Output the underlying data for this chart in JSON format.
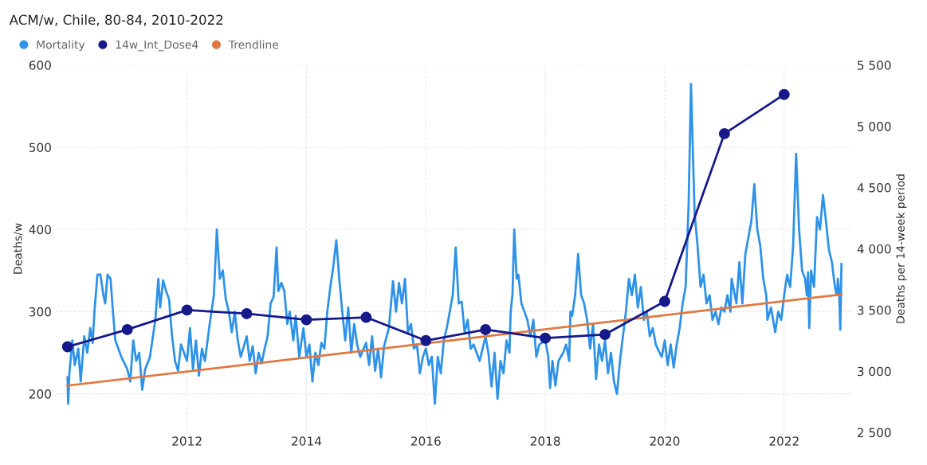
{
  "chart_data": {
    "type": "line",
    "title": "ACM/w, Chile, 80-84, 2010-2022",
    "ylabel": "Deaths/w",
    "y2label": "Deaths per 14-week period",
    "xlim": [
      2009.8,
      2023.15
    ],
    "xticks": [
      2012,
      2014,
      2016,
      2018,
      2020,
      2022
    ],
    "ylim": [
      153,
      600
    ],
    "yticks": [
      200,
      300,
      400,
      500,
      600
    ],
    "y2lim": [
      2500,
      5500
    ],
    "y2ticks": [
      {
        "value": 2500,
        "label": "2 500"
      },
      {
        "value": 3000,
        "label": "3 000"
      },
      {
        "value": 3500,
        "label": "3 500"
      },
      {
        "value": 4000,
        "label": "4 000"
      },
      {
        "value": 4500,
        "label": "4 500"
      },
      {
        "value": 5000,
        "label": "5 000"
      },
      {
        "value": 5500,
        "label": "5 500"
      }
    ],
    "grid": true,
    "legend": "top left",
    "series": [
      {
        "name": "Mortality",
        "color": "#2e93e8",
        "marker": "none",
        "x": [
          2010.0,
          2010.01,
          2010.03,
          2010.08,
          2010.12,
          2010.18,
          2010.22,
          2010.28,
          2010.33,
          2010.38,
          2010.42,
          2010.45,
          2010.5,
          2010.55,
          2010.6,
          2010.63,
          2010.67,
          2010.72,
          2010.76,
          2010.8,
          2010.85,
          2010.9,
          2011.0,
          2011.05,
          2011.1,
          2011.15,
          2011.2,
          2011.25,
          2011.3,
          2011.38,
          2011.42,
          2011.47,
          2011.52,
          2011.55,
          2011.6,
          2011.65,
          2011.7,
          2011.75,
          2011.8,
          2011.85,
          2011.9,
          2012.0,
          2012.05,
          2012.1,
          2012.15,
          2012.2,
          2012.25,
          2012.3,
          2012.38,
          2012.45,
          2012.5,
          2012.55,
          2012.6,
          2012.65,
          2012.7,
          2012.75,
          2012.8,
          2012.85,
          2012.9,
          2013.0,
          2013.05,
          2013.1,
          2013.15,
          2013.2,
          2013.25,
          2013.3,
          2013.35,
          2013.4,
          2013.45,
          2013.5,
          2013.53,
          2013.58,
          2013.63,
          2013.68,
          2013.72,
          2013.78,
          2013.82,
          2013.88,
          2013.95,
          2014.0,
          2014.05,
          2014.1,
          2014.15,
          2014.2,
          2014.25,
          2014.3,
          2014.35,
          2014.4,
          2014.45,
          2014.5,
          2014.55,
          2014.6,
          2014.65,
          2014.7,
          2014.75,
          2014.8,
          2014.85,
          2014.9,
          2015.0,
          2015.05,
          2015.1,
          2015.15,
          2015.2,
          2015.25,
          2015.3,
          2015.38,
          2015.45,
          2015.5,
          2015.55,
          2015.6,
          2015.65,
          2015.7,
          2015.75,
          2015.8,
          2015.85,
          2015.9,
          2015.95,
          2016.0,
          2016.05,
          2016.1,
          2016.15,
          2016.2,
          2016.25,
          2016.3,
          2016.35,
          2016.4,
          2016.45,
          2016.5,
          2016.55,
          2016.6,
          2016.65,
          2016.7,
          2016.75,
          2016.8,
          2016.9,
          2016.95,
          2017.0,
          2017.05,
          2017.1,
          2017.15,
          2017.2,
          2017.25,
          2017.3,
          2017.35,
          2017.4,
          2017.42,
          2017.45,
          2017.48,
          2017.52,
          2017.55,
          2017.6,
          2017.65,
          2017.7,
          2017.75,
          2017.8,
          2017.85,
          2017.9,
          2018.0,
          2018.05,
          2018.08,
          2018.12,
          2018.17,
          2018.22,
          2018.3,
          2018.35,
          2018.4,
          2018.42,
          2018.45,
          2018.5,
          2018.55,
          2018.6,
          2018.65,
          2018.7,
          2018.75,
          2018.8,
          2018.85,
          2018.9,
          2018.95,
          2019.0,
          2019.05,
          2019.1,
          2019.15,
          2019.2,
          2019.25,
          2019.3,
          2019.35,
          2019.4,
          2019.45,
          2019.5,
          2019.55,
          2019.6,
          2019.65,
          2019.7,
          2019.75,
          2019.8,
          2019.85,
          2019.9,
          2019.95,
          2020.0,
          2020.05,
          2020.1,
          2020.15,
          2020.2,
          2020.25,
          2020.3,
          2020.35,
          2020.4,
          2020.44,
          2020.5,
          2020.55,
          2020.6,
          2020.65,
          2020.7,
          2020.75,
          2020.8,
          2020.85,
          2020.9,
          2020.95,
          2021.0,
          2021.05,
          2021.1,
          2021.12,
          2021.2,
          2021.25,
          2021.3,
          2021.35,
          2021.4,
          2021.45,
          2021.5,
          2021.55,
          2021.6,
          2021.65,
          2021.7,
          2021.72,
          2021.78,
          2021.85,
          2021.9,
          2021.95,
          2022.0,
          2022.05,
          2022.1,
          2022.15,
          2022.2,
          2022.25,
          2022.3,
          2022.35,
          2022.38,
          2022.4,
          2022.42,
          2022.45,
          2022.5,
          2022.55,
          2022.6,
          2022.65,
          2022.7,
          2022.75,
          2022.8,
          2022.85,
          2022.88,
          2022.9,
          2022.92,
          2022.94,
          2022.96
        ],
        "values": [
          220,
          188,
          225,
          265,
          235,
          255,
          215,
          270,
          250,
          280,
          262,
          300,
          345,
          345,
          320,
          310,
          345,
          340,
          300,
          265,
          255,
          245,
          230,
          215,
          265,
          240,
          250,
          205,
          230,
          245,
          265,
          290,
          340,
          305,
          338,
          325,
          315,
          270,
          240,
          228,
          260,
          240,
          280,
          230,
          265,
          222,
          255,
          240,
          285,
          320,
          400,
          340,
          350,
          315,
          300,
          275,
          300,
          265,
          245,
          270,
          240,
          258,
          225,
          250,
          237,
          255,
          270,
          310,
          318,
          378,
          325,
          335,
          325,
          285,
          300,
          265,
          295,
          245,
          280,
          245,
          260,
          215,
          250,
          235,
          262,
          255,
          300,
          330,
          355,
          387,
          340,
          300,
          265,
          305,
          250,
          285,
          260,
          245,
          262,
          235,
          270,
          228,
          255,
          220,
          258,
          280,
          337,
          300,
          335,
          310,
          340,
          275,
          285,
          255,
          260,
          225,
          245,
          255,
          235,
          245,
          188,
          245,
          225,
          265,
          280,
          300,
          320,
          378,
          310,
          312,
          275,
          290,
          255,
          260,
          240,
          255,
          270,
          248,
          209,
          250,
          194,
          240,
          225,
          265,
          250,
          300,
          320,
          400,
          340,
          345,
          310,
          300,
          290,
          270,
          290,
          245,
          260,
          265,
          245,
          207,
          240,
          210,
          240,
          250,
          260,
          240,
          300,
          295,
          320,
          370,
          320,
          310,
          290,
          255,
          285,
          218,
          260,
          240,
          265,
          225,
          250,
          215,
          200,
          240,
          270,
          300,
          340,
          320,
          345,
          305,
          330,
          290,
          300,
          270,
          280,
          260,
          252,
          245,
          265,
          235,
          260,
          232,
          260,
          280,
          310,
          330,
          430,
          577,
          420,
          380,
          330,
          345,
          310,
          320,
          290,
          300,
          285,
          305,
          300,
          320,
          300,
          340,
          310,
          360,
          310,
          370,
          390,
          410,
          455,
          400,
          380,
          340,
          320,
          290,
          305,
          275,
          300,
          290,
          320,
          345,
          330,
          380,
          492,
          400,
          350,
          340,
          320,
          348,
          280,
          350,
          330,
          415,
          400,
          442,
          410,
          375,
          360,
          330,
          320,
          340,
          325,
          278,
          358
        ]
      },
      {
        "name": "14w_Int_Dose4",
        "color": "#15198a",
        "marker": "circle",
        "axis": "y2",
        "x": [
          2010,
          2011,
          2012,
          2013,
          2014,
          2015,
          2016,
          2017,
          2018,
          2019,
          2020,
          2021,
          2022
        ],
        "values": [
          3200,
          3340,
          3500,
          3470,
          3420,
          3440,
          3250,
          3340,
          3270,
          3300,
          3570,
          4940,
          5260
        ]
      },
      {
        "name": "Trendline",
        "color": "#e07840",
        "marker": "none",
        "x": [
          2010.0,
          2022.96
        ],
        "values": [
          210,
          321
        ]
      }
    ]
  }
}
